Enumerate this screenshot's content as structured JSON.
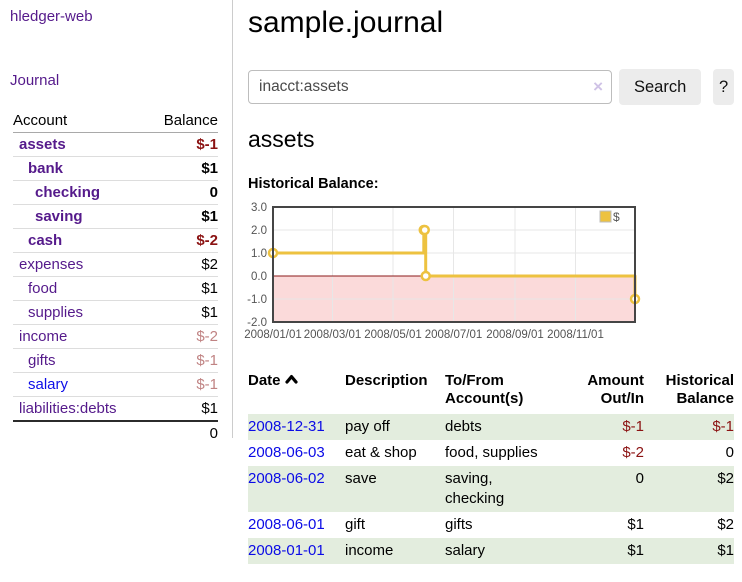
{
  "app": {
    "title": "hledger-web"
  },
  "sidebar": {
    "journal_link": "Journal",
    "headers": {
      "account": "Account",
      "balance": "Balance"
    },
    "accounts": [
      {
        "name": "assets",
        "balance": "$-1"
      },
      {
        "name": "bank",
        "balance": "$1"
      },
      {
        "name": "checking",
        "balance": "0"
      },
      {
        "name": "saving",
        "balance": "$1"
      },
      {
        "name": "cash",
        "balance": "$-2"
      },
      {
        "name": "expenses",
        "balance": "$2"
      },
      {
        "name": "food",
        "balance": "$1"
      },
      {
        "name": "supplies",
        "balance": "$1"
      },
      {
        "name": "income",
        "balance": "$-2"
      },
      {
        "name": "gifts",
        "balance": "$-1"
      },
      {
        "name": "salary",
        "balance": "$-1"
      },
      {
        "name": "liabilities:debts",
        "balance": "$1"
      }
    ],
    "total": "0"
  },
  "header": {
    "title": "sample.journal"
  },
  "search": {
    "value": "inacct:assets",
    "clear_icon": "×",
    "button_label": "Search",
    "help_label": "?"
  },
  "account_page": {
    "heading": "assets",
    "chart_title": "Historical Balance:"
  },
  "chart_data": {
    "type": "line",
    "title": "Historical Balance",
    "x_range": [
      "2008-01-01",
      "2008-12-31"
    ],
    "y_range": [
      -2.0,
      3.0
    ],
    "x_ticks": [
      "2008/01/01",
      "2008/03/01",
      "2008/05/01",
      "2008/07/01",
      "2008/09/01",
      "2008/11/01"
    ],
    "y_ticks": [
      3.0,
      2.0,
      1.0,
      0.0,
      -1.0,
      -2.0
    ],
    "series": [
      {
        "name": "$",
        "color": "#EDC240",
        "step": true,
        "points": [
          [
            "2008-01-01",
            1
          ],
          [
            "2008-06-01",
            2
          ],
          [
            "2008-06-02",
            2
          ],
          [
            "2008-06-03",
            0
          ],
          [
            "2008-12-31",
            -1
          ]
        ]
      }
    ],
    "legend": [
      {
        "label": "$",
        "color": "#EDC240"
      }
    ],
    "grid": true,
    "negative_region_color": "#fbdada",
    "zero_line_color": "#8b1a1a"
  },
  "register": {
    "headers": {
      "date": "Date",
      "description": "Description",
      "accounts": "To/From Account(s)",
      "amount": "Amount Out/In",
      "balance": "Historical Balance"
    },
    "rows": [
      {
        "date": "2008-12-31",
        "description": "pay off",
        "accounts": "debts",
        "amount": "$-1",
        "balance": "$-1"
      },
      {
        "date": "2008-06-03",
        "description": "eat & shop",
        "accounts": "food, supplies",
        "amount": "$-2",
        "balance": "0"
      },
      {
        "date": "2008-06-02",
        "description": "save",
        "accounts": "saving, checking",
        "amount": "0",
        "balance": "$2"
      },
      {
        "date": "2008-06-01",
        "description": "gift",
        "accounts": "gifts",
        "amount": "$1",
        "balance": "$2"
      },
      {
        "date": "2008-01-01",
        "description": "income",
        "accounts": "salary",
        "amount": "$1",
        "balance": "$1"
      }
    ]
  }
}
